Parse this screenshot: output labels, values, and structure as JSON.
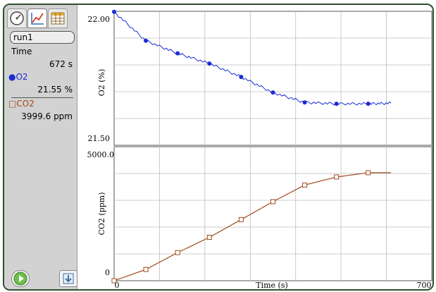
{
  "sidebar": {
    "tabs": [
      "meter-icon",
      "graph-icon",
      "table-icon"
    ],
    "run_name": "run1",
    "time_label": "Time",
    "time_value": "672 s",
    "o2_label": "O2",
    "o2_value": "21.55 %",
    "co2_label": "CO2",
    "co2_value": "3999.6 ppm"
  },
  "colors": {
    "o2": "#1b2bd6",
    "co2": "#a14a1b",
    "frame": "#2e4f2e",
    "grid": "#bdbdbd"
  },
  "graph": {
    "o2_ylabel": "O2 (%)",
    "o2_ymax": "22.00",
    "o2_ymin": "21.50",
    "co2_ylabel": "CO2 (ppm)",
    "co2_ymax": "5000.0",
    "co2_ymin": "0",
    "xlabel": "Time (s)",
    "xmin": "0",
    "xmax": "700"
  },
  "chart_data": [
    {
      "type": "line",
      "x": [
        0,
        70,
        140,
        210,
        280,
        350,
        420,
        490,
        560,
        610
      ],
      "series": [
        {
          "values": [
            21.998,
            21.89,
            21.843,
            21.805,
            21.755,
            21.697,
            21.66,
            21.655,
            21.655,
            21.657
          ]
        }
      ],
      "xlabel": "Time (s)",
      "ylabel": "O2 (%)",
      "xlim": [
        0,
        700
      ],
      "ylim": [
        21.5,
        22.0
      ],
      "grid": true
    },
    {
      "type": "line",
      "x": [
        0,
        70,
        140,
        210,
        280,
        350,
        420,
        490,
        560,
        610
      ],
      "series": [
        {
          "values": [
            0,
            420,
            1050,
            1620,
            2280,
            2950,
            3570,
            3870,
            4030,
            4030
          ]
        }
      ],
      "xlabel": "Time (s)",
      "ylabel": "CO2 (ppm)",
      "xlim": [
        0,
        700
      ],
      "ylim": [
        0,
        5000
      ],
      "grid": true
    }
  ]
}
